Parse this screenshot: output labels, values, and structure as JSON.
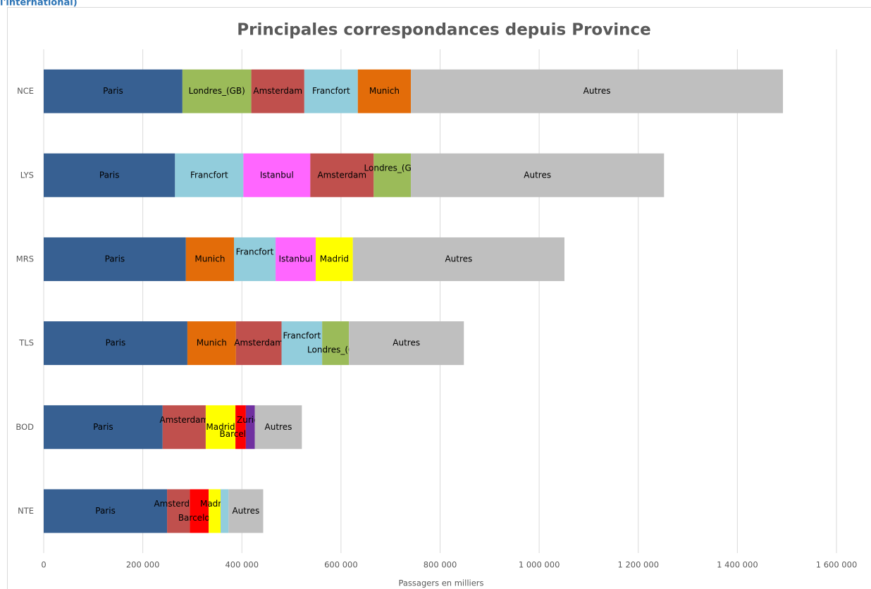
{
  "header_fragment": "l'international)",
  "chart_data": {
    "type": "stacked-bar-horizontal",
    "title": "Principales correspondances depuis Province",
    "x_label": "Passagers en milliers",
    "xlim": [
      0,
      1600000
    ],
    "xticks": [
      0,
      {
        "value": 200000,
        "label": "200 000"
      },
      {
        "value": 400000,
        "label": "400 000"
      },
      {
        "value": 600000,
        "label": "600 000"
      },
      {
        "value": 800000,
        "label": "800 000"
      },
      {
        "value": 1000000,
        "label": "1 000 000"
      },
      {
        "value": 1200000,
        "label": "1 200 000"
      },
      {
        "value": 1400000,
        "label": "1 400 000"
      },
      {
        "value": 1600000,
        "label": "1 600 000"
      }
    ],
    "grid": true,
    "categories": [
      "NCE",
      "LYS",
      "MRS",
      "TLS",
      "BOD",
      "NTE"
    ],
    "bars": [
      {
        "segments": [
          {
            "name": "Paris",
            "color": "#376092",
            "value": 280000
          },
          {
            "name": "Londres_(GB)",
            "color": "#9bbb59",
            "value": 139000
          },
          {
            "name": "Amsterdam",
            "color": "#c0504d",
            "value": 107000
          },
          {
            "name": "Francfort",
            "color": "#92cddc",
            "value": 108000
          },
          {
            "name": "Munich",
            "color": "#e36c09",
            "value": 107000
          },
          {
            "name": "Autres",
            "color": "#bfbfbf",
            "value": 751000
          }
        ]
      },
      {
        "segments": [
          {
            "name": "Paris",
            "color": "#376092",
            "value": 265000
          },
          {
            "name": "Francfort",
            "color": "#92cddc",
            "value": 138000
          },
          {
            "name": "Istanbul",
            "color": "#ff66ff",
            "value": 135000
          },
          {
            "name": "Amsterdam",
            "color": "#c0504d",
            "value": 128000
          },
          {
            "name": "Londres_(GB)",
            "color": "#9bbb59",
            "value": 75000
          },
          {
            "name": "Autres",
            "color": "#bfbfbf",
            "value": 511000
          }
        ]
      },
      {
        "segments": [
          {
            "name": "Paris",
            "color": "#376092",
            "value": 287000
          },
          {
            "name": "Munich",
            "color": "#e36c09",
            "value": 97000
          },
          {
            "name": "Francfort",
            "color": "#92cddc",
            "value": 84000
          },
          {
            "name": "Istanbul",
            "color": "#ff66ff",
            "value": 81000
          },
          {
            "name": "Madrid",
            "color": "#ffff00",
            "value": 75000
          },
          {
            "name": "Autres",
            "color": "#bfbfbf",
            "value": 427000
          }
        ]
      },
      {
        "segments": [
          {
            "name": "Paris",
            "color": "#376092",
            "value": 290000
          },
          {
            "name": "Munich",
            "color": "#e36c09",
            "value": 98000
          },
          {
            "name": "Amsterdam",
            "color": "#c0504d",
            "value": 92000
          },
          {
            "name": "Francfort",
            "color": "#92cddc",
            "value": 82000
          },
          {
            "name": "Londres_(GB)",
            "color": "#9bbb59",
            "value": 54000
          },
          {
            "name": "Autres",
            "color": "#bfbfbf",
            "value": 232000
          }
        ]
      },
      {
        "segments": [
          {
            "name": "Paris",
            "color": "#376092",
            "value": 240000
          },
          {
            "name": "Amsterdam",
            "color": "#c0504d",
            "value": 87000
          },
          {
            "name": "Madrid",
            "color": "#ffff00",
            "value": 60000
          },
          {
            "name": "Barcelone",
            "color": "#ff0000",
            "value": 21000
          },
          {
            "name": "Zurich",
            "color": "#7030a0",
            "value": 18000
          },
          {
            "name": "Autres",
            "color": "#bfbfbf",
            "value": 95000
          }
        ]
      },
      {
        "segments": [
          {
            "name": "Paris",
            "color": "#376092",
            "value": 249000
          },
          {
            "name": "Amsterdam",
            "color": "#c0504d",
            "value": 46000
          },
          {
            "name": "Barcelone",
            "color": "#ff0000",
            "value": 38000
          },
          {
            "name": "Madrid",
            "color": "#ffff00",
            "value": 24000
          },
          {
            "name": null,
            "color": "#92cddc",
            "value": 16000
          },
          {
            "name": "Autres",
            "color": "#bfbfbf",
            "value": 70000
          }
        ]
      }
    ]
  }
}
